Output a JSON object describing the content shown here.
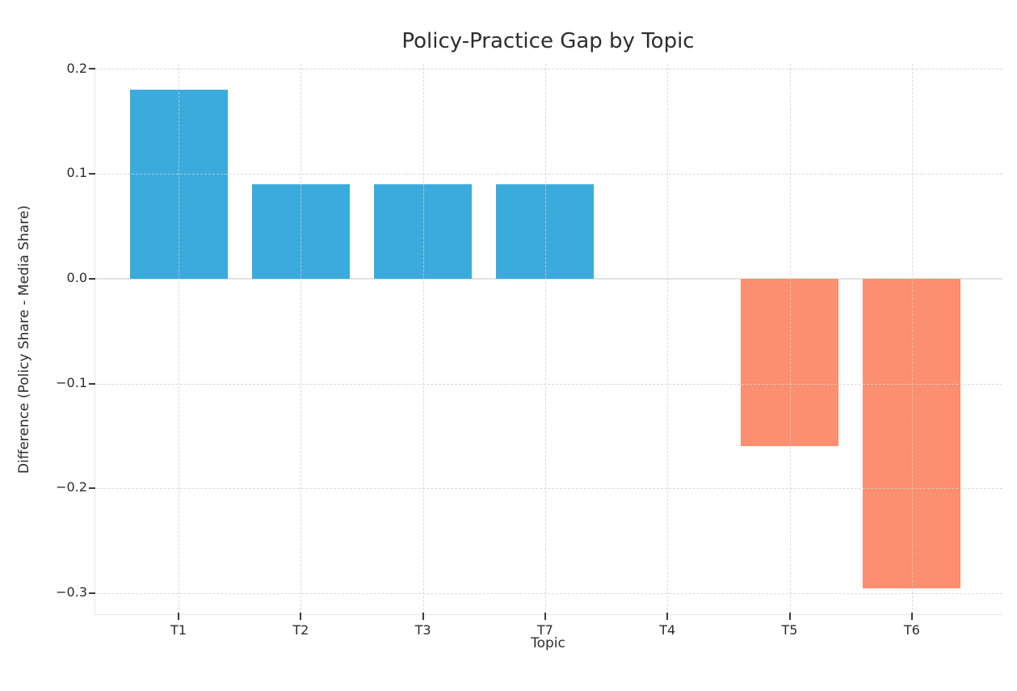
{
  "chart_data": {
    "type": "bar",
    "title": "Policy-Practice Gap by Topic",
    "xlabel": "Topic",
    "ylabel": "Difference (Policy Share - Media Share)",
    "categories": [
      "T1",
      "T2",
      "T3",
      "T7",
      "T4",
      "T5",
      "T6"
    ],
    "values": [
      0.18,
      0.09,
      0.09,
      0.09,
      0.0,
      -0.16,
      -0.295
    ],
    "yticks": [
      0.2,
      0.1,
      0.0,
      -0.1,
      -0.2,
      -0.3
    ],
    "ylim": [
      -0.32,
      0.205
    ],
    "grid": true,
    "legend_position": "none",
    "colors": {
      "positive_bar": "#3aabdc",
      "negative_bar": "#fc8f6f",
      "grid": "#d2d2d2",
      "zero_line": "#e3e3e3",
      "spine": "#e7e7e7",
      "tick_mark": "#3a3a3a",
      "text": "#2d2d2d",
      "background": "#ffffff"
    }
  }
}
